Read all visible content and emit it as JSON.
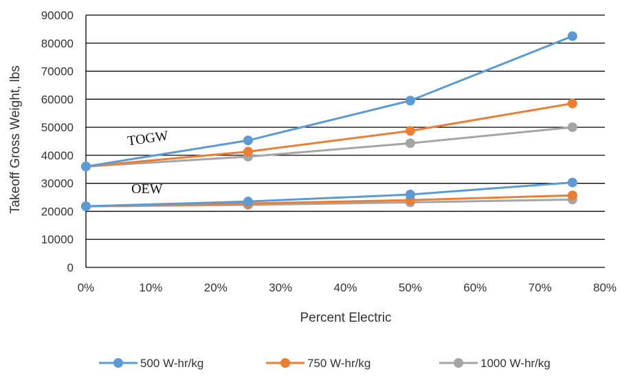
{
  "chart_data": {
    "type": "line",
    "title": "",
    "xlabel": "Percent Electric",
    "ylabel": "Takeoff Gross Weight, lbs",
    "xlim": [
      0,
      80
    ],
    "ylim": [
      0,
      90000
    ],
    "x_ticks": [
      "0%",
      "10%",
      "20%",
      "30%",
      "40%",
      "50%",
      "60%",
      "70%",
      "80%"
    ],
    "y_ticks": [
      "0",
      "10000",
      "20000",
      "30000",
      "40000",
      "50000",
      "60000",
      "70000",
      "80000",
      "90000"
    ],
    "grid": "horizontal",
    "legend": "bottom",
    "x": [
      0,
      25,
      50,
      75
    ],
    "series": [
      {
        "name": "500 W-hr/kg",
        "group": "TOGW",
        "color": "#5B9BD5",
        "values": [
          36000,
          45300,
          59500,
          82500
        ]
      },
      {
        "name": "750 W-hr/kg",
        "group": "TOGW",
        "color": "#ED7D31",
        "values": [
          36000,
          41300,
          48700,
          58500
        ]
      },
      {
        "name": "1000 W-hr/kg",
        "group": "TOGW",
        "color": "#A5A5A5",
        "values": [
          36000,
          39500,
          44300,
          50000
        ]
      },
      {
        "name": "500 W-hr/kg",
        "group": "OEW",
        "color": "#5B9BD5",
        "values": [
          21800,
          23500,
          26000,
          30300
        ]
      },
      {
        "name": "750 W-hr/kg",
        "group": "OEW",
        "color": "#ED7D31",
        "values": [
          21800,
          22800,
          24000,
          25700
        ]
      },
      {
        "name": "1000 W-hr/kg",
        "group": "OEW",
        "color": "#A5A5A5",
        "values": [
          21800,
          22300,
          23200,
          24200
        ]
      }
    ],
    "legend_entries": [
      {
        "label": "500 W-hr/kg",
        "color": "#5B9BD5"
      },
      {
        "label": "750 W-hr/kg",
        "color": "#ED7D31"
      },
      {
        "label": "1000 W-hr/kg",
        "color": "#A5A5A5"
      }
    ],
    "annotations": [
      {
        "text": "TOGW",
        "x": 6.5,
        "y": 43500,
        "angle": -8
      },
      {
        "text": "OEW",
        "x": 7.0,
        "y": 26500,
        "angle": 0
      }
    ]
  }
}
